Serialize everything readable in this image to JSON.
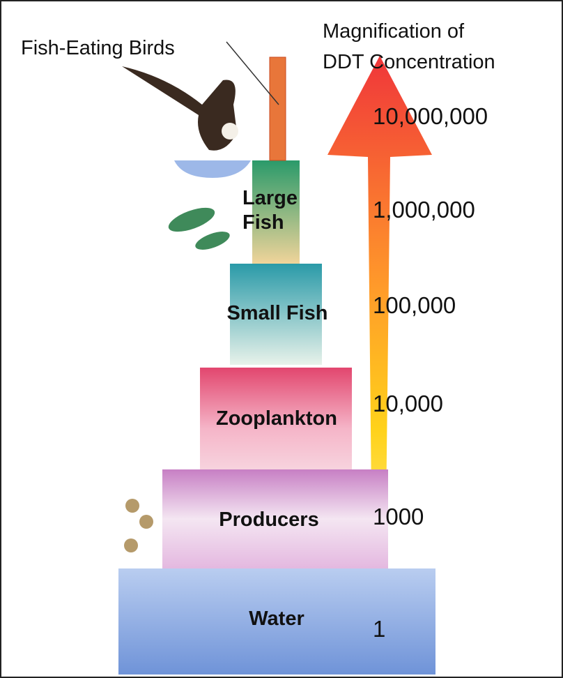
{
  "title_lines": [
    "Magnification of",
    "DDT Concentration"
  ],
  "birds": {
    "label": "Fish-Eating Birds",
    "magnification": "10,000,000"
  },
  "levels": [
    {
      "label": [
        "Large",
        "Fish"
      ],
      "magnification": "1,000,000"
    },
    {
      "label": "Small Fish",
      "magnification": "100,000"
    },
    {
      "label": "Zooplankton",
      "magnification": "10,000"
    },
    {
      "label": "Producers",
      "magnification": "1000"
    },
    {
      "label": "Water",
      "magnification": "1"
    }
  ]
}
